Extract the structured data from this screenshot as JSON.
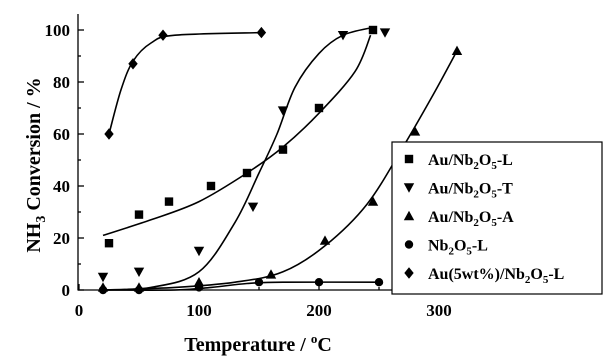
{
  "chart_data": {
    "type": "scatter",
    "xlabel": "Temperature / °C",
    "ylabel": "NH3 Conversion / %",
    "xlim": [
      0,
      350
    ],
    "ylim": [
      0,
      100
    ],
    "x_ticks": [
      "0",
      "100",
      "200",
      "300"
    ],
    "y_ticks": [
      "0",
      "20",
      "40",
      "60",
      "80",
      "100"
    ],
    "legend_position": "right",
    "series": [
      {
        "name": "Au/Nb2O5-L",
        "marker": "square",
        "points": [
          [
            25,
            18
          ],
          [
            50,
            29
          ],
          [
            75,
            34
          ],
          [
            110,
            40
          ],
          [
            140,
            45
          ],
          [
            170,
            54
          ],
          [
            200,
            70
          ],
          [
            245,
            100
          ]
        ],
        "curve": [
          [
            20,
            21
          ],
          [
            60,
            27
          ],
          [
            100,
            34
          ],
          [
            140,
            45
          ],
          [
            170,
            55
          ],
          [
            200,
            68
          ],
          [
            230,
            84
          ],
          [
            243,
            98
          ]
        ]
      },
      {
        "name": "Au/Nb2O5-T",
        "marker": "triangle-down",
        "points": [
          [
            20,
            5
          ],
          [
            50,
            7
          ],
          [
            100,
            15
          ],
          [
            145,
            32
          ],
          [
            170,
            69
          ],
          [
            220,
            98
          ],
          [
            255,
            99
          ]
        ],
        "curve": [
          [
            20,
            0
          ],
          [
            60,
            1
          ],
          [
            100,
            7
          ],
          [
            130,
            26
          ],
          [
            150,
            45
          ],
          [
            165,
            60
          ],
          [
            180,
            78
          ],
          [
            200,
            91
          ],
          [
            220,
            98
          ],
          [
            245,
            101
          ]
        ]
      },
      {
        "name": "Au/Nb2O5-A",
        "marker": "triangle-up",
        "points": [
          [
            20,
            1
          ],
          [
            50,
            1
          ],
          [
            100,
            3
          ],
          [
            160,
            6
          ],
          [
            205,
            19
          ],
          [
            245,
            34
          ],
          [
            280,
            61
          ],
          [
            315,
            92
          ]
        ],
        "curve": [
          [
            20,
            0
          ],
          [
            80,
            1
          ],
          [
            130,
            3
          ],
          [
            170,
            7
          ],
          [
            205,
            17
          ],
          [
            240,
            33
          ],
          [
            270,
            55
          ],
          [
            295,
            75
          ],
          [
            315,
            92
          ]
        ]
      },
      {
        "name": "Nb2O5-L",
        "marker": "circle",
        "points": [
          [
            20,
            0
          ],
          [
            50,
            0
          ],
          [
            100,
            1
          ],
          [
            150,
            3
          ],
          [
            200,
            3
          ],
          [
            250,
            3
          ]
        ],
        "curve": [
          [
            20,
            0
          ],
          [
            80,
            0
          ],
          [
            110,
            1
          ],
          [
            140,
            2.5
          ],
          [
            170,
            3
          ],
          [
            250,
            3
          ]
        ]
      },
      {
        "name": "Au(5wt%)/Nb2O5-L",
        "marker": "diamond",
        "points": [
          [
            25,
            60
          ],
          [
            45,
            87
          ],
          [
            70,
            98
          ],
          [
            152,
            99
          ]
        ],
        "curve": [
          [
            25,
            60
          ],
          [
            35,
            77
          ],
          [
            45,
            88
          ],
          [
            60,
            95
          ],
          [
            80,
            98
          ],
          [
            152,
            99
          ]
        ]
      }
    ]
  },
  "legend": {
    "items": [
      {
        "pre": "Au/Nb",
        "sub1": "2",
        "mid": "O",
        "sub2": "5",
        "post": "-L"
      },
      {
        "pre": "Au/Nb",
        "sub1": "2",
        "mid": "O",
        "sub2": "5",
        "post": "-T"
      },
      {
        "pre": "Au/Nb",
        "sub1": "2",
        "mid": "O",
        "sub2": "5",
        "post": "-A"
      },
      {
        "pre": "Nb",
        "sub1": "2",
        "mid": "O",
        "sub2": "5",
        "post": "-L"
      },
      {
        "pre": "Au(5wt%)/Nb",
        "sub1": "2",
        "mid": "O",
        "sub2": "5",
        "post": "-L"
      }
    ]
  }
}
